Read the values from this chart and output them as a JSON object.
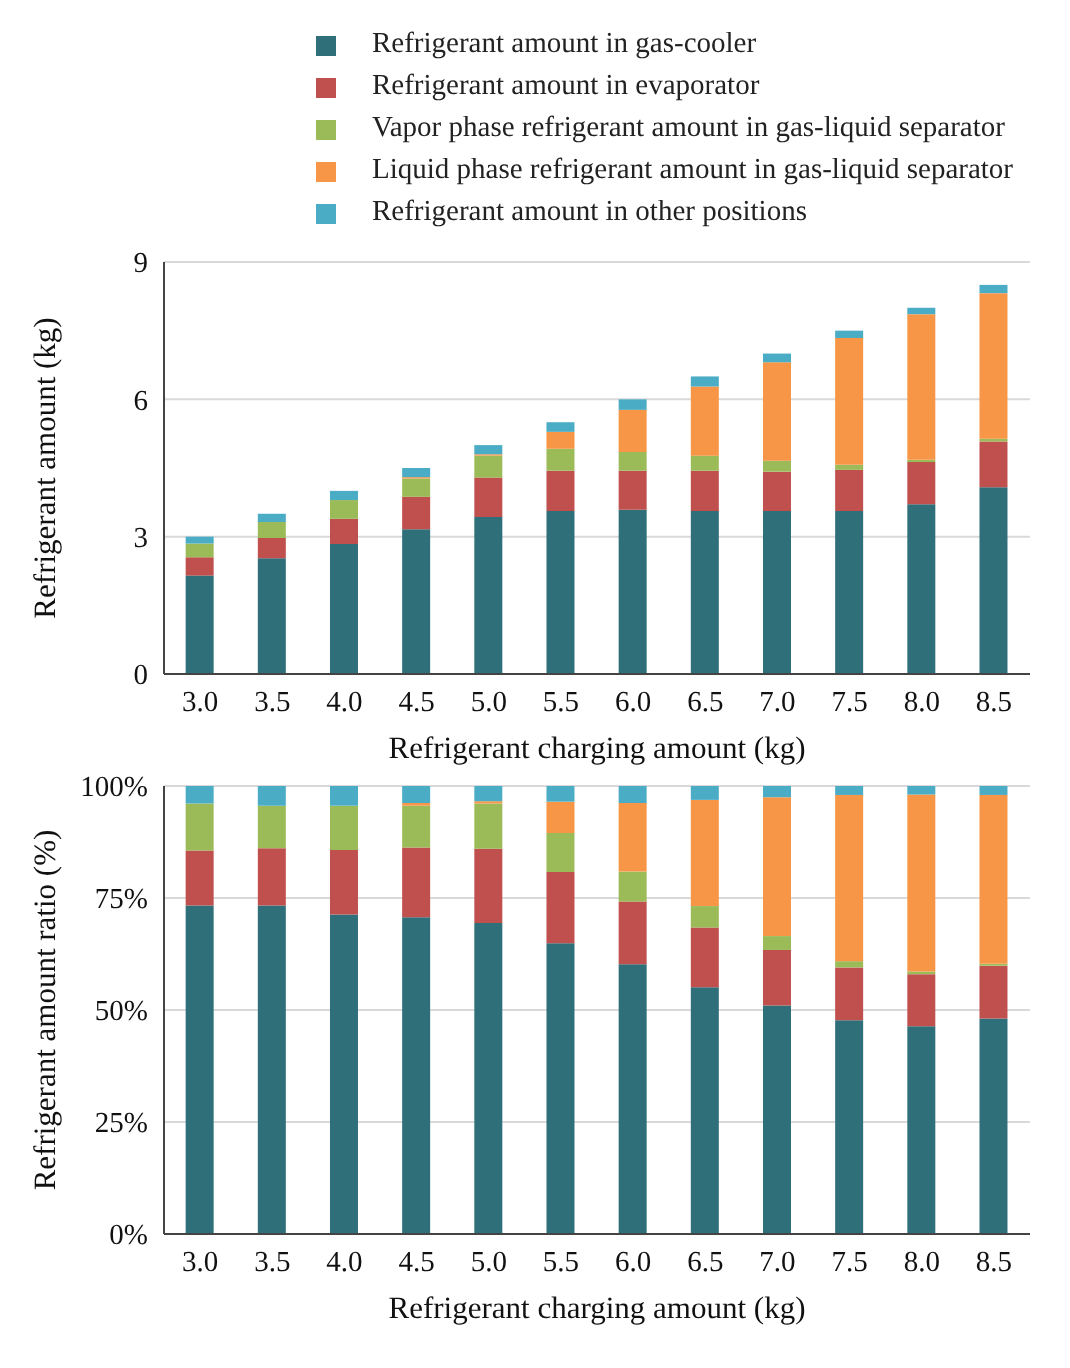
{
  "chart_data": [
    {
      "type": "bar",
      "stacked": true,
      "xlabel": "Refrigerant charging amount (kg)",
      "ylabel": "Refrigerant amount (kg)",
      "categories": [
        "3.0",
        "3.5",
        "4.0",
        "4.5",
        "5.0",
        "5.5",
        "6.0",
        "6.5",
        "7.0",
        "7.5",
        "8.0",
        "8.5"
      ],
      "ylim": [
        0,
        9
      ],
      "yticks": [
        0,
        3,
        6,
        9
      ],
      "grid": "y",
      "legend": "top",
      "series": [
        {
          "name": "Refrigerant amount in gas-cooler",
          "color": "#2e6f7a",
          "values": [
            2.15,
            2.53,
            2.84,
            3.16,
            3.43,
            3.56,
            3.59,
            3.56,
            3.56,
            3.56,
            3.71,
            4.08
          ]
        },
        {
          "name": "Refrigerant amount in evaporator",
          "color": "#c0504d",
          "values": [
            0.4,
            0.44,
            0.55,
            0.71,
            0.86,
            0.88,
            0.85,
            0.88,
            0.86,
            0.9,
            0.92,
            1.0
          ]
        },
        {
          "name": "Vapor phase refrigerant amount in gas-liquid separator",
          "color": "#9bbb59",
          "values": [
            0.3,
            0.35,
            0.41,
            0.4,
            0.48,
            0.48,
            0.41,
            0.33,
            0.24,
            0.11,
            0.05,
            0.06
          ]
        },
        {
          "name": "Liquid phase refrigerant amount in gas-liquid separator",
          "color": "#f79646",
          "values": [
            0,
            0,
            0,
            0.03,
            0.03,
            0.37,
            0.92,
            1.51,
            2.15,
            2.77,
            3.18,
            3.18
          ]
        },
        {
          "name": "Refrigerant amount in other positions",
          "color": "#4bacc6",
          "values": [
            0.15,
            0.18,
            0.2,
            0.2,
            0.2,
            0.21,
            0.23,
            0.22,
            0.19,
            0.16,
            0.14,
            0.18
          ]
        }
      ]
    },
    {
      "type": "bar",
      "stacked": true,
      "xlabel": "Refrigerant charging amount (kg)",
      "ylabel": "Refrigerant amount ratio (%)",
      "categories": [
        "3.0",
        "3.5",
        "4.0",
        "4.5",
        "5.0",
        "5.5",
        "6.0",
        "6.5",
        "7.0",
        "7.5",
        "8.0",
        "8.5"
      ],
      "ylim": [
        0,
        100
      ],
      "yticks": [
        {
          "value": 0,
          "label": "0%"
        },
        {
          "value": 25,
          "label": "25%"
        },
        {
          "value": 50,
          "label": "50%"
        },
        {
          "value": 75,
          "label": "75%"
        },
        {
          "value": 100,
          "label": "100%"
        }
      ],
      "grid": "y",
      "series": [
        {
          "color": "#2e6f7a",
          "values": [
            73.3,
            73.3,
            71.3,
            70.7,
            69.4,
            64.9,
            60.2,
            55.1,
            51.0,
            47.7,
            46.4,
            48.1
          ]
        },
        {
          "color": "#c0504d",
          "values": [
            12.3,
            12.8,
            14.4,
            15.6,
            16.6,
            15.9,
            14.0,
            13.3,
            12.4,
            11.8,
            11.6,
            11.8
          ]
        },
        {
          "color": "#9bbb59",
          "values": [
            10.5,
            9.5,
            9.9,
            9.3,
            10.1,
            8.7,
            6.7,
            4.8,
            3.1,
            1.4,
            0.6,
            0.4
          ]
        },
        {
          "color": "#f79646",
          "values": [
            0,
            0,
            0,
            0.6,
            0.5,
            7.0,
            15.3,
            23.7,
            31.0,
            37.1,
            39.5,
            37.7
          ]
        },
        {
          "color": "#4bacc6",
          "values": [
            3.9,
            4.4,
            4.4,
            3.8,
            3.4,
            3.5,
            3.8,
            3.1,
            2.5,
            2.0,
            1.9,
            2.0
          ]
        }
      ]
    }
  ]
}
